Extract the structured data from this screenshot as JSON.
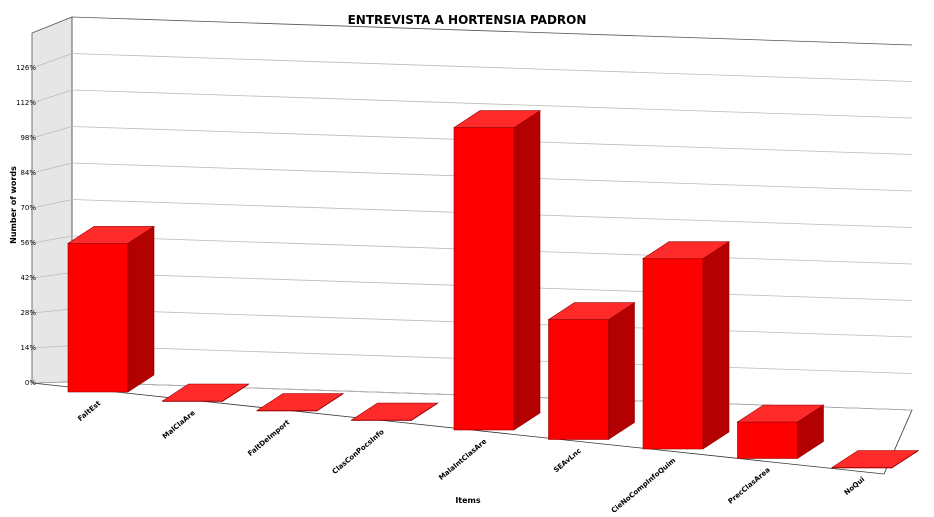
{
  "chart_data": {
    "type": "bar",
    "title": "ENTREVISTA A HORTENSIA PADRON",
    "xlabel": "Items",
    "ylabel": "Number of words",
    "categories": [
      "FaltEst",
      "MalClaAre",
      "FaltDeImport",
      "ClasConPocsInfo",
      "MalaIntClasAre",
      "SEAvLnc",
      "CieNoCompInfoQuim",
      "PrecClasArea",
      "NoQui"
    ],
    "values": [
      57,
      0,
      0,
      0,
      116,
      46,
      73,
      14,
      0
    ],
    "yticks": [
      "0%",
      "14%",
      "28%",
      "42%",
      "56%",
      "70%",
      "84%",
      "98%",
      "112%",
      "126%"
    ],
    "ylim": [
      0,
      140
    ],
    "grid": true,
    "bar_color": "#ff0000",
    "legend": "none"
  }
}
